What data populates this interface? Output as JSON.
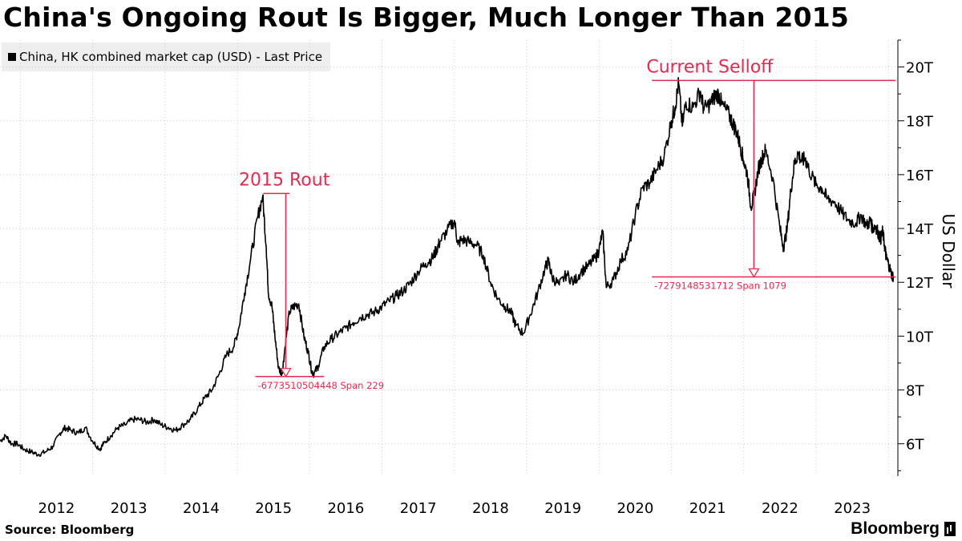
{
  "title": "China's Ongoing Rout Is Bigger, Much Longer Than 2015",
  "legend": {
    "label": "China, HK combined market cap (USD) - Last Price"
  },
  "source": "Source: Bloomberg",
  "brand": "Bloomberg",
  "colors": {
    "line": "#000000",
    "annotation": "#e8294f",
    "grid": "#cccccc"
  },
  "chart_data": {
    "type": "line",
    "title": "China's Ongoing Rout Is Bigger, Much Longer Than 2015",
    "ylabel": "US Dollar",
    "xlim": [
      2011.72,
      2024.13
    ],
    "ylim": [
      4.8,
      21.0
    ],
    "x_ticks": [
      "2012",
      "2013",
      "2014",
      "2015",
      "2016",
      "2017",
      "2018",
      "2019",
      "2020",
      "2021",
      "2022",
      "2023"
    ],
    "y_ticks": [
      {
        "value": 6,
        "label": "6T"
      },
      {
        "value": 8,
        "label": "8T"
      },
      {
        "value": 10,
        "label": "10T"
      },
      {
        "value": 12,
        "label": "12T"
      },
      {
        "value": 14,
        "label": "14T"
      },
      {
        "value": 16,
        "label": "16T"
      },
      {
        "value": 18,
        "label": "18T"
      },
      {
        "value": 20,
        "label": "20T"
      }
    ],
    "series": [
      {
        "name": "China, HK combined market cap (USD) - Last Price",
        "x": [
          2011.72,
          2011.8,
          2011.88,
          2011.96,
          2012.05,
          2012.15,
          2012.25,
          2012.35,
          2012.45,
          2012.55,
          2012.62,
          2012.7,
          2012.8,
          2012.9,
          2013.0,
          2013.1,
          2013.15,
          2013.25,
          2013.35,
          2013.45,
          2013.55,
          2013.65,
          2013.75,
          2013.85,
          2013.95,
          2014.05,
          2014.15,
          2014.25,
          2014.35,
          2014.45,
          2014.55,
          2014.65,
          2014.75,
          2014.85,
          2014.95,
          2015.02,
          2015.1,
          2015.18,
          2015.28,
          2015.35,
          2015.4,
          2015.43,
          2015.48,
          2015.52,
          2015.57,
          2015.62,
          2015.66,
          2015.72,
          2015.78,
          2015.85,
          2015.92,
          2015.98,
          2016.03,
          2016.06,
          2016.12,
          2016.2,
          2016.3,
          2016.4,
          2016.5,
          2016.6,
          2016.7,
          2016.8,
          2016.9,
          2017.0,
          2017.1,
          2017.2,
          2017.3,
          2017.4,
          2017.5,
          2017.6,
          2017.7,
          2017.75,
          2017.8,
          2017.9,
          2018.0,
          2018.05,
          2018.1,
          2018.2,
          2018.3,
          2018.4,
          2018.5,
          2018.6,
          2018.7,
          2018.78,
          2018.85,
          2018.95,
          2019.05,
          2019.15,
          2019.25,
          2019.3,
          2019.35,
          2019.45,
          2019.55,
          2019.65,
          2019.75,
          2019.85,
          2019.95,
          2020.0,
          2020.05,
          2020.1,
          2020.2,
          2020.3,
          2020.4,
          2020.5,
          2020.6,
          2020.7,
          2020.8,
          2020.9,
          2021.0,
          2021.05,
          2021.1,
          2021.15,
          2021.2,
          2021.3,
          2021.4,
          2021.45,
          2021.55,
          2021.6,
          2021.65,
          2021.7,
          2021.8,
          2021.85,
          2021.9,
          2021.95,
          2022.0,
          2022.05,
          2022.1,
          2022.15,
          2022.2,
          2022.25,
          2022.3,
          2022.4,
          2022.5,
          2022.55,
          2022.6,
          2022.65,
          2022.7,
          2022.75,
          2022.8,
          2022.85,
          2022.9,
          2023.0,
          2023.08,
          2023.15,
          2023.25,
          2023.35,
          2023.45,
          2023.55,
          2023.62,
          2023.7,
          2023.75,
          2023.78,
          2023.82,
          2023.85,
          2023.89,
          2023.92,
          2023.95,
          2023.97,
          2024.0,
          2024.04,
          2024.07
        ],
        "y": [
          6.1,
          6.3,
          6.0,
          6.0,
          5.8,
          5.7,
          5.6,
          5.7,
          5.9,
          6.4,
          6.6,
          6.5,
          6.4,
          6.6,
          6.1,
          5.8,
          6.0,
          6.3,
          6.6,
          6.7,
          6.9,
          6.9,
          6.8,
          6.9,
          6.7,
          6.6,
          6.5,
          6.7,
          6.9,
          7.3,
          7.7,
          8.0,
          8.6,
          9.3,
          9.6,
          10.3,
          11.6,
          12.8,
          14.4,
          15.2,
          13.3,
          11.6,
          11.1,
          10.0,
          8.8,
          8.6,
          9.6,
          10.9,
          11.1,
          11.2,
          10.0,
          9.4,
          8.7,
          8.6,
          8.9,
          9.6,
          9.9,
          10.1,
          10.3,
          10.5,
          10.7,
          10.8,
          10.9,
          11.1,
          11.3,
          11.5,
          11.7,
          12.0,
          12.4,
          12.7,
          12.9,
          13.2,
          13.5,
          13.9,
          14.3,
          13.4,
          13.6,
          13.5,
          13.4,
          13.0,
          12.0,
          11.4,
          11.1,
          10.9,
          10.4,
          10.1,
          10.8,
          11.6,
          12.5,
          12.8,
          12.2,
          11.9,
          12.3,
          12.0,
          12.4,
          12.6,
          12.9,
          13.2,
          13.9,
          11.8,
          12.1,
          12.8,
          13.2,
          14.5,
          15.5,
          15.7,
          16.2,
          16.7,
          18.0,
          18.5,
          19.4,
          17.8,
          18.7,
          18.5,
          19.1,
          18.4,
          18.7,
          18.9,
          19.0,
          18.6,
          18.2,
          17.9,
          17.6,
          17.1,
          16.5,
          16.0,
          14.8,
          15.3,
          16.2,
          16.6,
          16.9,
          15.9,
          14.0,
          13.3,
          14.0,
          15.4,
          16.4,
          16.8,
          16.5,
          16.6,
          16.2,
          15.6,
          15.5,
          15.1,
          15.0,
          14.6,
          14.3,
          14.2,
          14.5,
          14.1,
          14.3,
          14.0,
          14.1,
          13.9,
          13.6,
          13.9,
          13.3,
          12.9,
          12.7,
          12.3,
          12.2
        ]
      }
    ],
    "annotations": [
      {
        "label": "2015 Rout",
        "value_text": "-6773510504448 Span 229",
        "peak_x": 2015.36,
        "peak_y": 15.3,
        "trough_y": 8.5,
        "x_start": 2015.36,
        "x_end": 2015.72
      },
      {
        "label": "Current Selloff",
        "value_text": "-7279148531712 Span 1079",
        "peak_x": 2020.73,
        "peak_y": 19.5,
        "trough_y": 12.2,
        "x_start": 2020.73,
        "x_end": 2024.1
      }
    ]
  }
}
